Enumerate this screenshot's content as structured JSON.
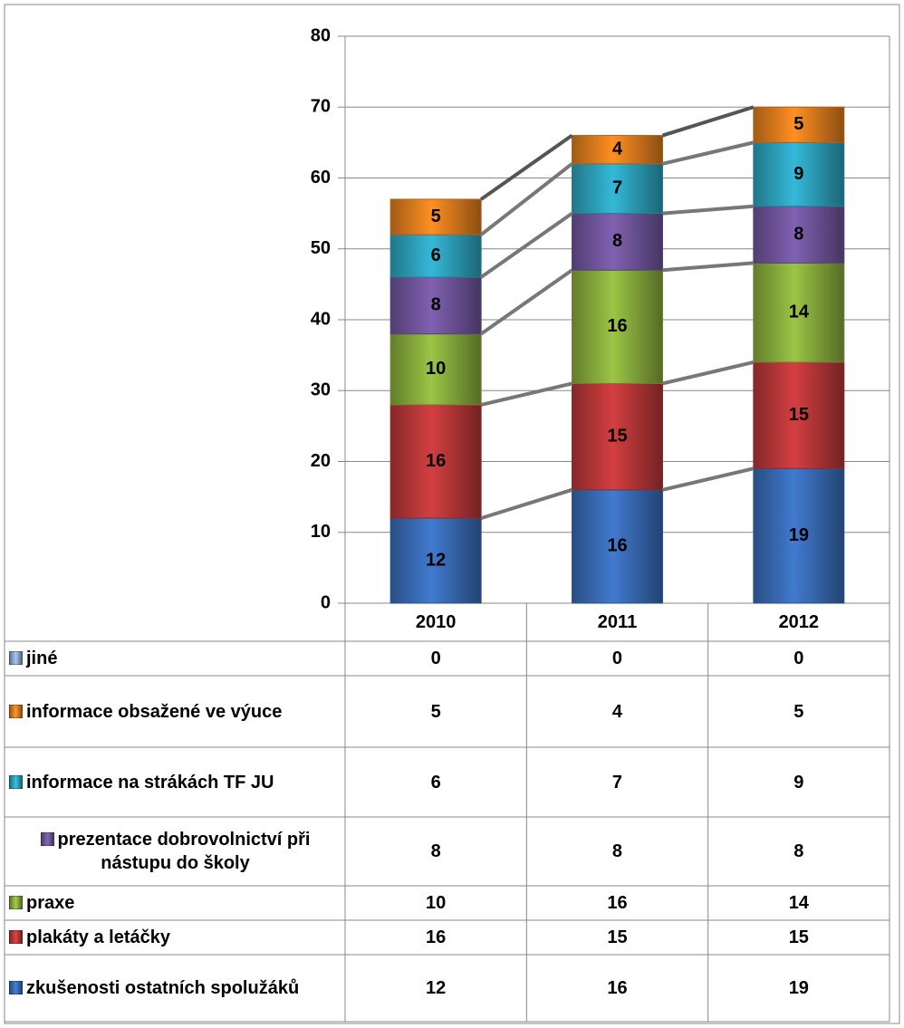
{
  "chart_data": {
    "type": "stacked-bar",
    "categories": [
      "2010",
      "2011",
      "2012"
    ],
    "series": [
      {
        "name": "zkušenosti ostatních spolužáků",
        "color": "#3b6fbc",
        "values": [
          12,
          16,
          19
        ]
      },
      {
        "name": "plakáty a letáčky",
        "color": "#c0393b",
        "values": [
          16,
          15,
          15
        ]
      },
      {
        "name": "praxe",
        "color": "#8db33f",
        "values": [
          10,
          16,
          14
        ]
      },
      {
        "name": "prezentace dobrovolnictví při nástupu do školy",
        "color": "#7458a2",
        "values": [
          8,
          8,
          8
        ]
      },
      {
        "name": "informace na strákách TF JU",
        "color": "#2fa8c4",
        "values": [
          6,
          7,
          9
        ]
      },
      {
        "name": "informace obsažené ve výuce",
        "color": "#e8821f",
        "values": [
          5,
          4,
          5
        ]
      },
      {
        "name": "jiné",
        "color": "#8faed6",
        "values": [
          0,
          0,
          0
        ]
      }
    ],
    "ylim": [
      0,
      80
    ],
    "yticks": [
      0,
      10,
      20,
      30,
      40,
      50,
      60,
      70,
      80
    ],
    "grid": true
  }
}
